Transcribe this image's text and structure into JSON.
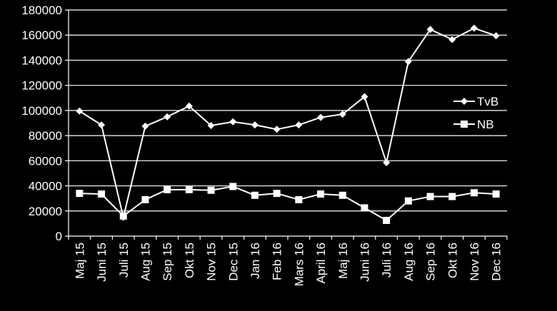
{
  "chart_data": {
    "type": "line",
    "categories": [
      "Maj 15",
      "Juni 15",
      "Juli 15",
      "Aug 15",
      "Sep 15",
      "Okt 15",
      "Nov 15",
      "Dec 15",
      "Jan 16",
      "Feb 16",
      "Mars 16",
      "April 16",
      "Maj 16",
      "Juni 16",
      "Juli 16",
      "Aug 16",
      "Sep 16",
      "Okt 16",
      "Nov 16",
      "Dec 16"
    ],
    "series": [
      {
        "name": "TvB",
        "marker": "diamond",
        "values": [
          99500,
          88500,
          15000,
          87500,
          95000,
          103500,
          88000,
          91000,
          88500,
          85000,
          88500,
          94500,
          97000,
          111000,
          58500,
          139000,
          164500,
          156500,
          165500,
          159500
        ]
      },
      {
        "name": "NB",
        "marker": "square",
        "values": [
          34000,
          33500,
          16000,
          29000,
          37000,
          37000,
          36500,
          39500,
          32500,
          34000,
          29000,
          33500,
          32500,
          22500,
          12500,
          28000,
          31500,
          31500,
          34500,
          33500
        ]
      }
    ],
    "ylim": [
      0,
      180000
    ],
    "yticks": [
      0,
      20000,
      40000,
      60000,
      80000,
      100000,
      120000,
      140000,
      160000,
      180000
    ],
    "grid": "horizontal",
    "legend": "right",
    "colors": {
      "background": "#000000",
      "line": "#ffffff",
      "text": "#ffffff",
      "grid": "#ffffff"
    }
  }
}
